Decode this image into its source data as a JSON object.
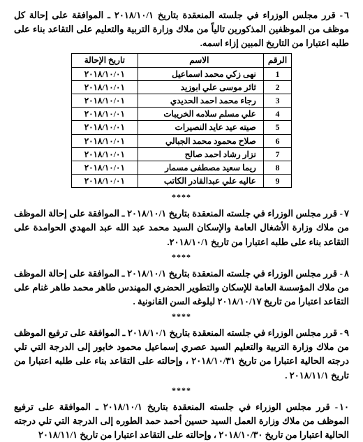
{
  "item6": {
    "num": "٦",
    "text": "- قرر مجلس الوزراء في جلسته المنعقدة بتاريخ ٢٠١٨/١٠/١ ـ الموافقة على إحالة كل موظف من الموظفين المذكورين تالياً من ملاك وزارة التربية والتعليم على التقاعد بناء على طلبه اعتبارا من التاريخ المبين إزاء اسمه."
  },
  "table": {
    "headers": {
      "idx": "الرقم",
      "name": "الاسم",
      "date": "تاريخ الإحالة"
    },
    "rows": [
      {
        "idx": "1",
        "name": "نهى زكي محمد اسماعيل",
        "date": "٢٠١٨/١٠/٠١"
      },
      {
        "idx": "2",
        "name": "ثائر موسى علي ابوزيد",
        "date": "٢٠١٨/١٠/٠١"
      },
      {
        "idx": "3",
        "name": "رجاء محمد احمد الحديدي",
        "date": "٢٠١٨/١٠/٠١"
      },
      {
        "idx": "4",
        "name": "علي مسلم سلامه الخريبات",
        "date": "٢٠١٨/١٠/٠١"
      },
      {
        "idx": "5",
        "name": "صيته عيد عايد النصيرات",
        "date": "٢٠١٨/١٠/٠١"
      },
      {
        "idx": "6",
        "name": "صلاح محمود محمد الجبالي",
        "date": "٢٠١٨/١٠/٠١"
      },
      {
        "idx": "7",
        "name": "نزار رشاد احمد صالح",
        "date": "٢٠١٨/١٠/٠١"
      },
      {
        "idx": "8",
        "name": "ريما سعيد مصطفى مسمار",
        "date": "٢٠١٨/١٠/٠١"
      },
      {
        "idx": "9",
        "name": "عاليه علي عبدالقادر الكاتب",
        "date": "٢٠١٨/١٠/٠١"
      }
    ]
  },
  "item7": {
    "num": "٧",
    "text": "- قرر مجلس الوزراء في جلسته المنعقدة بتاريخ ٢٠١٨/١٠/١ ـ الموافقة على إحالة الموظف من ملاك وزارة الأشغال العامة والإسكان السيد محمد عبد الله عبد المهدي الحوامدة على التقاعد بناء على طلبه اعتبارا من تاريخ ٢٠١٨/١٠/١."
  },
  "item8": {
    "num": "٨",
    "text": "- قرر مجلس الوزراء في جلسته المنعقدة بتاريخ ٢٠١٨/١٠/١ ـ الموافقة على إحالة الموظف من ملاك المؤسسة العامة للإسكان والتطوير الحضري المهندس طاهر محمد طاهر غنام على التقاعد اعتبارا من تاريخ ٢٠١٨/١٠/١٧ لبلوغه السن القانونية ."
  },
  "item9": {
    "num": "٩",
    "text": "- قرر مجلس الوزراء في جلسته المنعقدة بتاريخ ٢٠١٨/١٠/١ ـ الموافقة على ترفيع الموظف من ملاك وزارة التربية والتعليم السيد عصري إسماعيل محمود خابور إلى الدرجة التي تلي درجته الحالية اعتبارا من تاريخ ٢٠١٨/١٠/٣١ ، وإحالته على التقاعد  بناء على طلبه اعتبارا من تاريخ ٢٠١٨/١١/١ ."
  },
  "item10": {
    "num": "١٠",
    "text": "-  قرر مجلس الوزراء في جلسته المنعقدة بتاريخ ٢٠١٨/١٠/١ ـ الموافقة على ترفيع الموظف من ملاك وزارة العمل السيد حسين أحمد حمد الطوره إلى الدرجة التي تلي درجته الحالية اعتبارا من تاريخ ٢٠١٨/١٠/٣٠ ، وإحالته على التقاعد اعتبارا من تاريخ ٢٠١٨/١١/١"
  },
  "sep": "****"
}
